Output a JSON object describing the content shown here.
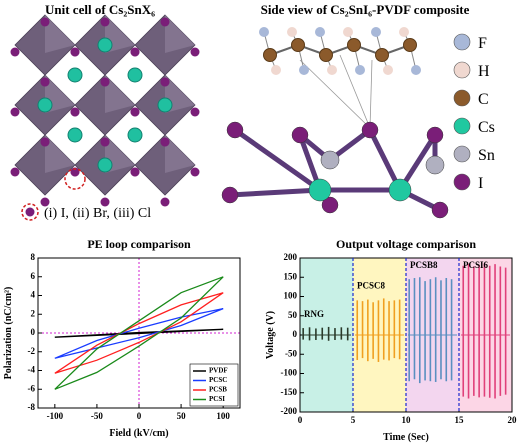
{
  "unit_cell": {
    "title": "Unit cell of Cs₂SnX₆",
    "legend": "(i) I, (ii) Br, (iii) Cl"
  },
  "side_view": {
    "title": "Side view of Cs₂SnI₆-PVDF composite",
    "elements": [
      "F",
      "H",
      "C",
      "Cs",
      "Sn",
      "I"
    ]
  },
  "chart_data": [
    {
      "type": "loop",
      "title": "PE loop comparison",
      "x_label": "Field (kV/cm)",
      "y_label": "Polarization (nC/cm²)",
      "xlim": [
        -120,
        120
      ],
      "xticks": [
        -100,
        -50,
        0,
        50,
        100
      ],
      "ylim": [
        -8,
        8
      ],
      "yticks": [
        -8,
        -6,
        -4,
        -2,
        0,
        2,
        4,
        6,
        8
      ],
      "series": [
        {
          "name": "PVDF",
          "color": "#000000",
          "x": [
            -100,
            0,
            100,
            0,
            -100
          ],
          "values": [
            -0.45,
            -0.05,
            0.4,
            0.05,
            -0.45
          ]
        },
        {
          "name": "PCSC",
          "color": "#1a3cff",
          "x": [
            -100,
            -50,
            0,
            50,
            100,
            50,
            0,
            -50,
            -100
          ],
          "values": [
            -2.7,
            -1.6,
            -0.5,
            0.8,
            2.6,
            1.7,
            0.5,
            -0.8,
            -2.7
          ]
        },
        {
          "name": "PCSB",
          "color": "#ff2020",
          "x": [
            -100,
            -50,
            0,
            50,
            100,
            50,
            0,
            -50,
            -100
          ],
          "values": [
            -4.3,
            -2.9,
            -1.0,
            1.2,
            4.3,
            3.0,
            1.0,
            -1.3,
            -4.3
          ]
        },
        {
          "name": "PCSI",
          "color": "#1a8a1a",
          "x": [
            -100,
            -50,
            0,
            50,
            100,
            50,
            0,
            -50,
            -100
          ],
          "values": [
            -6,
            -4.2,
            -1.4,
            1.6,
            6,
            4.3,
            1.3,
            -1.7,
            -6
          ]
        }
      ]
    },
    {
      "type": "pulses",
      "title": "Output voltage comparison",
      "x_label": "Time (Sec)",
      "y_label": "Voltage (V)",
      "xlim": [
        0,
        20
      ],
      "xticks": [
        0,
        5,
        10,
        15,
        20
      ],
      "ylim": [
        -200,
        200
      ],
      "yticks": [
        -200,
        -150,
        -100,
        -50,
        0,
        50,
        100,
        150,
        200
      ],
      "series": [
        {
          "name": "RNG",
          "color": "#2a3a2a",
          "shade": "#c8f0e6",
          "span": [
            0,
            5
          ],
          "x": [
            0.3,
            0.9,
            1.5,
            2.1,
            2.7,
            3.3,
            3.9,
            4.5
          ],
          "values": [
            18,
            20,
            17,
            19,
            21,
            18,
            20,
            19
          ],
          "troughs": [
            -12,
            -14,
            -13,
            -12,
            -15,
            -13,
            -12,
            -14
          ]
        },
        {
          "name": "PCSC8",
          "color": "#f0a020",
          "shade": "#fff6c0",
          "span": [
            5,
            10
          ],
          "x": [
            5.4,
            5.9,
            6.4,
            6.9,
            7.4,
            7.9,
            8.4,
            8.9,
            9.4
          ],
          "values": [
            90,
            88,
            92,
            85,
            90,
            95,
            88,
            90,
            92
          ],
          "troughs": [
            -65,
            -60,
            -68,
            -62,
            -70,
            -64,
            -66,
            -60,
            -63
          ]
        },
        {
          "name": "PCSB8",
          "color": "#5a8fc0",
          "shade": "#f3d6ef",
          "span": [
            10,
            15
          ],
          "x": [
            10.3,
            10.8,
            11.3,
            11.8,
            12.3,
            12.8,
            13.3,
            13.8,
            14.3
          ],
          "values": [
            145,
            148,
            150,
            140,
            145,
            150,
            142,
            148,
            145
          ],
          "troughs": [
            -120,
            -115,
            -125,
            -118,
            -120,
            -122,
            -115,
            -120,
            -118
          ]
        },
        {
          "name": "PCSI6",
          "color": "#e0407a",
          "shade": "#fcd6e6",
          "span": [
            15,
            20
          ],
          "x": [
            15.4,
            15.9,
            16.4,
            16.9,
            17.4,
            17.9,
            18.4,
            18.9,
            19.4
          ],
          "values": [
            180,
            185,
            178,
            182,
            186,
            180,
            184,
            178,
            175
          ],
          "troughs": [
            -160,
            -165,
            -158,
            -162,
            -160,
            -163,
            -165,
            -158,
            -155
          ]
        }
      ]
    }
  ]
}
